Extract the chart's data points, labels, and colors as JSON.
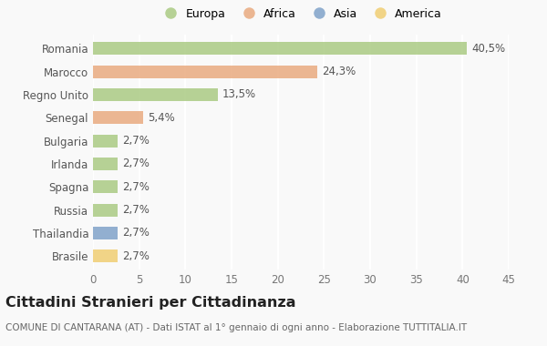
{
  "categories": [
    "Romania",
    "Marocco",
    "Regno Unito",
    "Senegal",
    "Bulgaria",
    "Irlanda",
    "Spagna",
    "Russia",
    "Thailandia",
    "Brasile"
  ],
  "values": [
    40.5,
    24.3,
    13.5,
    5.4,
    2.7,
    2.7,
    2.7,
    2.7,
    2.7,
    2.7
  ],
  "labels": [
    "40,5%",
    "24,3%",
    "13,5%",
    "5,4%",
    "2,7%",
    "2,7%",
    "2,7%",
    "2,7%",
    "2,7%",
    "2,7%"
  ],
  "colors": [
    "#a8c97f",
    "#e8a87c",
    "#a8c97f",
    "#e8a87c",
    "#a8c97f",
    "#a8c97f",
    "#a8c97f",
    "#a8c97f",
    "#7b9fc7",
    "#f0cc6e"
  ],
  "legend_labels": [
    "Europa",
    "Africa",
    "Asia",
    "America"
  ],
  "legend_colors": [
    "#a8c97f",
    "#e8a87c",
    "#7b9fc7",
    "#f0cc6e"
  ],
  "title": "Cittadini Stranieri per Cittadinanza",
  "subtitle": "COMUNE DI CANTARANA (AT) - Dati ISTAT al 1° gennaio di ogni anno - Elaborazione TUTTITALIA.IT",
  "xlim": [
    0,
    45
  ],
  "xticks": [
    0,
    5,
    10,
    15,
    20,
    25,
    30,
    35,
    40,
    45
  ],
  "background_color": "#f9f9f9",
  "grid_color": "#ffffff",
  "bar_height": 0.55,
  "label_fontsize": 8.5,
  "tick_fontsize": 8.5,
  "ytick_fontsize": 8.5,
  "title_fontsize": 11.5,
  "subtitle_fontsize": 7.5
}
